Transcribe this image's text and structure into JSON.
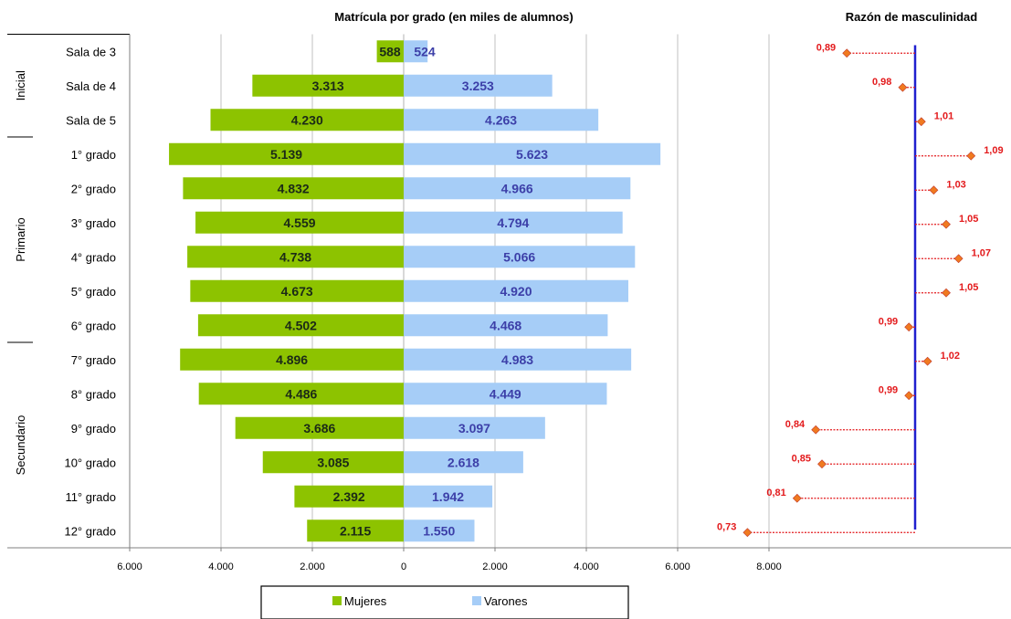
{
  "chart_data": [
    {
      "type": "bar",
      "subtype": "population-pyramid (horizontal, back-to-back)",
      "title": "Matrícula por grado (en miles de alumnos)",
      "categories": [
        "Sala de 3",
        "Sala de 4",
        "Sala de 5",
        "1° grado",
        "2° grado",
        "3° grado",
        "4° grado",
        "5° grado",
        "6° grado",
        "7° grado",
        "8° grado",
        "9° grado",
        "10° grado",
        "11° grado",
        "12° grado"
      ],
      "groups": [
        {
          "label": "Inicial",
          "categories": [
            "Sala de 3",
            "Sala de 4",
            "Sala de 5"
          ]
        },
        {
          "label": "Primario",
          "categories": [
            "1° grado",
            "2° grado",
            "3° grado",
            "4° grado",
            "5° grado",
            "6° grado"
          ]
        },
        {
          "label": "Secundario",
          "categories": [
            "7° grado",
            "8° grado",
            "9° grado",
            "10° grado",
            "11° grado",
            "12° grado"
          ]
        }
      ],
      "series": [
        {
          "name": "Mujeres",
          "color": "#8dc300",
          "direction": "left",
          "values": [
            588,
            3313,
            4230,
            5139,
            4832,
            4559,
            4738,
            4673,
            4502,
            4896,
            4486,
            3686,
            3085,
            2392,
            2115
          ],
          "labels": [
            "588",
            "3.313",
            "4.230",
            "5.139",
            "4.832",
            "4.559",
            "4.738",
            "4.673",
            "4.502",
            "4.896",
            "4.486",
            "3.686",
            "3.085",
            "2.392",
            "2.115"
          ]
        },
        {
          "name": "Varones",
          "color": "#a6cdf7",
          "direction": "right",
          "values": [
            524,
            3253,
            4263,
            5623,
            4966,
            4794,
            5066,
            4920,
            4468,
            4983,
            4449,
            3097,
            2618,
            1942,
            1550
          ],
          "labels": [
            "524",
            "3.253",
            "4.263",
            "5.623",
            "4.966",
            "4.794",
            "5.066",
            "4.920",
            "4.468",
            "4.983",
            "4.449",
            "3.097",
            "2.618",
            "1.942",
            "1.550"
          ]
        }
      ],
      "xlim": [
        -6000,
        8000
      ],
      "xticks": [
        -6000,
        -4000,
        -2000,
        0,
        2000,
        4000,
        6000,
        8000
      ],
      "xtick_labels": [
        "6.000",
        "4.000",
        "2.000",
        "0",
        "2.000",
        "4.000",
        "6.000",
        "8.000"
      ],
      "grid": "vertical",
      "legend": {
        "position": "bottom-center",
        "entries": [
          "Mujeres",
          "Varones"
        ]
      }
    },
    {
      "type": "scatter",
      "title": "Razón de masculinidad",
      "categories": [
        "Sala de 3",
        "Sala de 4",
        "Sala de 5",
        "1° grado",
        "2° grado",
        "3° grado",
        "4° grado",
        "5° grado",
        "6° grado",
        "7° grado",
        "8° grado",
        "9° grado",
        "10° grado",
        "11° grado",
        "12° grado"
      ],
      "values": [
        0.89,
        0.98,
        1.01,
        1.09,
        1.03,
        1.05,
        1.07,
        1.05,
        0.99,
        1.02,
        0.99,
        0.84,
        0.85,
        0.81,
        0.73
      ],
      "labels": [
        "0,89",
        "0,98",
        "1,01",
        "1,09",
        "1,03",
        "1,05",
        "1,07",
        "1,05",
        "0,99",
        "1,02",
        "0,99",
        "0,84",
        "0,85",
        "0,81",
        "0,73"
      ],
      "reference_line": 1,
      "colors": {
        "marker": "#f07a20",
        "connector": "#e31a1c",
        "reference": "#1f1fcf",
        "label": "#e31a1c"
      }
    }
  ],
  "colors": {
    "grid": "#c0c0c0",
    "axis": "#7f7f7f",
    "text": "#000000"
  }
}
